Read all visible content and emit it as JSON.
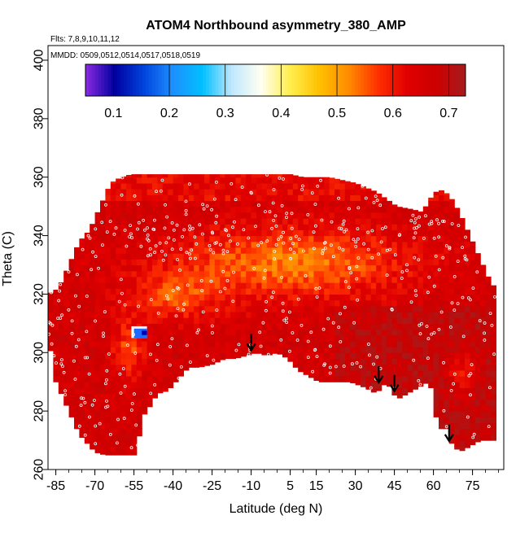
{
  "chart_data": {
    "type": "heatmap",
    "title": "ATOM4 Northbound asymmetry_380_AMP",
    "subtitle_flights": "Flts: 7,8,9,10,11,12",
    "subtitle_dates": "MMDD: 0509,0512,0514,0517,0518,0519",
    "xlabel": "Latitude (deg N)",
    "ylabel": "Theta (C)",
    "xlim": [
      -88,
      87
    ],
    "ylim": [
      260,
      405
    ],
    "x_ticks": [
      -85,
      -70,
      -55,
      -40,
      -25,
      -10,
      5,
      15,
      30,
      45,
      60,
      75
    ],
    "y_ticks": [
      260,
      280,
      300,
      320,
      340,
      360,
      380,
      400
    ],
    "colorbar": {
      "min": 0.05,
      "max": 0.73,
      "ticks": [
        0.1,
        0.2,
        0.3,
        0.4,
        0.5,
        0.6,
        0.7
      ],
      "colors": [
        "#8a2be2",
        "#0000a0",
        "#0044dd",
        "#1f90ff",
        "#00bfff",
        "#bfe8ff",
        "#fffff0",
        "#ffee50",
        "#ffc000",
        "#ff8c00",
        "#ff3000",
        "#e00000",
        "#cc0000",
        "#a51d1d"
      ]
    },
    "field": {
      "lat_range": [
        -88,
        84
      ],
      "theta_range": [
        265,
        362
      ],
      "lower_boundary_lat": [
        -88,
        -85,
        -80,
        -76,
        -70,
        -66,
        -62,
        -58,
        -54,
        -52,
        -50,
        -46,
        -42,
        -38,
        -34,
        -30,
        -25,
        -20,
        -16,
        -12,
        -8,
        -4,
        0,
        4,
        8,
        12,
        16,
        22,
        28,
        34,
        38,
        42,
        46,
        50,
        54,
        58,
        60,
        62,
        64,
        66,
        70,
        74,
        78,
        82
      ],
      "lower_boundary_theta": [
        306,
        290,
        280,
        272,
        266,
        265,
        265,
        265,
        265,
        278,
        280,
        286,
        287,
        291,
        295,
        295,
        296,
        298,
        298,
        299,
        300,
        299,
        300,
        298,
        294,
        292,
        290,
        290,
        290,
        288,
        286,
        290,
        284,
        286,
        288,
        290,
        286,
        270,
        278,
        270,
        266,
        268,
        270,
        270
      ],
      "upper_boundary_lat": [
        -88,
        -84,
        -80,
        -76,
        -72,
        -68,
        -64,
        -60,
        -56,
        -50,
        -40,
        -30,
        -20,
        -10,
        0,
        5,
        10,
        20,
        30,
        38,
        46,
        52,
        56,
        58,
        62,
        66,
        70,
        74,
        78,
        82,
        84
      ],
      "upper_boundary_theta": [
        320,
        322,
        330,
        338,
        342,
        350,
        358,
        360,
        361,
        361,
        361,
        361,
        361,
        361,
        361,
        361,
        360,
        360,
        358,
        355,
        350,
        349,
        348,
        352,
        356,
        354,
        348,
        340,
        332,
        324,
        322
      ]
    },
    "annotations": {
      "arrows": [
        {
          "lat": -10,
          "theta": 303
        },
        {
          "lat": 39,
          "theta": 292
        },
        {
          "lat": 45,
          "theta": 289
        },
        {
          "lat": 66,
          "theta": 272
        }
      ],
      "blue_patch": {
        "lat": [
          -56,
          -50
        ],
        "theta": [
          305,
          309
        ]
      }
    }
  }
}
